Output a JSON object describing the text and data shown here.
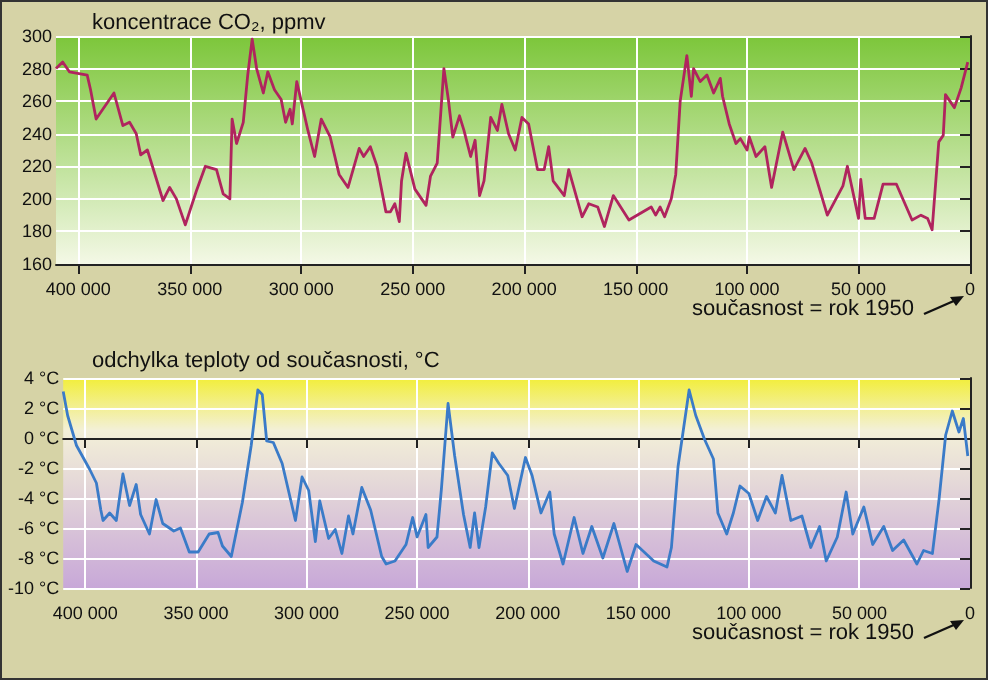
{
  "chart_data": [
    {
      "type": "line",
      "title": "koncentrace CO₂, ppmv",
      "annotations": [
        "současnost = rok 1950"
      ],
      "x": [
        410000,
        407000,
        404000,
        396000,
        394500,
        392000,
        384000,
        380000,
        377000,
        374000,
        372000,
        369000,
        362000,
        359000,
        356000,
        352000,
        347000,
        343000,
        338000,
        335000,
        332000,
        331000,
        329000,
        326000,
        324000,
        322000,
        320000,
        317000,
        315000,
        312000,
        309000,
        307000,
        305000,
        304000,
        302000,
        299000,
        297000,
        294000,
        291000,
        287000,
        283000,
        279000,
        274000,
        272000,
        269000,
        266000,
        262000,
        260000,
        258000,
        256000,
        255000,
        253000,
        249000,
        244000,
        242000,
        239000,
        236000,
        234000,
        232000,
        229000,
        227000,
        224000,
        222000,
        220000,
        218000,
        215000,
        212000,
        210000,
        207000,
        204000,
        201000,
        198000,
        194000,
        191000,
        189000,
        187000,
        182000,
        180000,
        174000,
        171000,
        167000,
        164000,
        160000,
        153000,
        143000,
        141000,
        139000,
        137000,
        134000,
        132000,
        130000,
        127000,
        125000,
        124000,
        121000,
        118000,
        115000,
        112000,
        111000,
        108000,
        105000,
        103000,
        100000,
        99000,
        96000,
        92000,
        89000,
        84000,
        79000,
        74000,
        71000,
        64000,
        57000,
        55000,
        50000,
        49000,
        47000,
        43000,
        39000,
        33000,
        26000,
        22000,
        19000,
        17000,
        14000,
        12000,
        11000,
        7000,
        4000,
        1000
      ],
      "series": [
        {
          "color": "#b0245e",
          "values": [
            280,
            284,
            278,
            276,
            267,
            249,
            265,
            245,
            247,
            240,
            227,
            230,
            199,
            207,
            200,
            184,
            205,
            220,
            218,
            203,
            200,
            249,
            234,
            247,
            276,
            298,
            280,
            265,
            278,
            267,
            261,
            247,
            255,
            246,
            272,
            254,
            242,
            226,
            249,
            238,
            215,
            207,
            231,
            226,
            232,
            220,
            192,
            192,
            197,
            186,
            211,
            228,
            206,
            196,
            214,
            222,
            280,
            261,
            238,
            251,
            242,
            226,
            236,
            202,
            211,
            250,
            242,
            258,
            240,
            230,
            250,
            246,
            218,
            218,
            232,
            211,
            202,
            218,
            189,
            197,
            195,
            183,
            202,
            187,
            195,
            190,
            195,
            189,
            200,
            215,
            260,
            288,
            263,
            280,
            272,
            276,
            265,
            274,
            263,
            246,
            234,
            237,
            230,
            238,
            226,
            232,
            207,
            241,
            218,
            231,
            222,
            190,
            208,
            220,
            188,
            212,
            188,
            188,
            209,
            209,
            187,
            190,
            188,
            181,
            235,
            239,
            264,
            256,
            268,
            284
          ]
        }
      ],
      "xlim": [
        410000,
        0
      ],
      "xticks": [
        {
          "value": 400000,
          "label": "400 000"
        },
        {
          "value": 350000,
          "label": "350 000"
        },
        {
          "value": 300000,
          "label": "300 000"
        },
        {
          "value": 250000,
          "label": "250 000"
        },
        {
          "value": 200000,
          "label": "200 000"
        },
        {
          "value": 150000,
          "label": "150 000"
        },
        {
          "value": 100000,
          "label": "100 000"
        },
        {
          "value": 50000,
          "label": "50 000"
        },
        0
      ],
      "ylim": [
        160,
        300
      ],
      "yticks": [
        160,
        180,
        200,
        220,
        240,
        260,
        280,
        300
      ],
      "grid": true
    },
    {
      "type": "line",
      "title": "odchylka teploty od současnosti, °C",
      "annotations": [
        "současnost = rok 1950"
      ],
      "x": [
        410000,
        408000,
        404000,
        398000,
        395000,
        393000,
        392000,
        389000,
        386000,
        383000,
        380000,
        377000,
        375000,
        371000,
        368000,
        365000,
        360000,
        357000,
        353000,
        349000,
        344000,
        340000,
        338000,
        334000,
        329000,
        325000,
        322000,
        320000,
        318000,
        315000,
        311000,
        305000,
        302000,
        299000,
        296000,
        294000,
        290000,
        287000,
        284000,
        281000,
        279000,
        275000,
        271000,
        266000,
        264000,
        260000,
        255000,
        252000,
        250000,
        246000,
        245000,
        241000,
        239000,
        236000,
        233000,
        229000,
        226000,
        224000,
        222000,
        219000,
        216000,
        213000,
        209000,
        206000,
        201000,
        198000,
        194000,
        190000,
        188000,
        184000,
        179000,
        175000,
        171000,
        166000,
        161000,
        155000,
        151000,
        143000,
        137000,
        135000,
        132000,
        127000,
        124000,
        120000,
        116000,
        114000,
        110000,
        107000,
        104000,
        100000,
        96000,
        92000,
        88000,
        85000,
        81000,
        76000,
        72000,
        68000,
        65000,
        60000,
        56000,
        53000,
        48000,
        44000,
        39000,
        35000,
        30000,
        24000,
        21000,
        17000,
        14000,
        11000,
        8000,
        5000,
        3000,
        1000
      ],
      "series": [
        {
          "color": "#3a7bc8",
          "values": [
            3.1,
            1.5,
            -0.5,
            -2.1,
            -3.0,
            -4.8,
            -5.5,
            -5.0,
            -5.5,
            -2.4,
            -4.5,
            -3.1,
            -5.1,
            -6.4,
            -4.1,
            -5.7,
            -6.2,
            -6.0,
            -7.6,
            -7.6,
            -6.4,
            -6.3,
            -7.2,
            -7.9,
            -4.3,
            -0.5,
            3.2,
            2.9,
            -0.2,
            -0.3,
            -1.7,
            -5.5,
            -2.6,
            -3.5,
            -6.9,
            -4.2,
            -6.7,
            -6.1,
            -7.7,
            -5.2,
            -6.4,
            -3.3,
            -4.8,
            -7.9,
            -8.4,
            -8.2,
            -7.1,
            -5.3,
            -6.6,
            -5.1,
            -7.3,
            -6.6,
            -3.4,
            2.3,
            -1.2,
            -5.1,
            -7.3,
            -5.0,
            -7.3,
            -4.6,
            -1.0,
            -1.7,
            -2.5,
            -4.7,
            -1.3,
            -2.5,
            -5.0,
            -3.6,
            -6.4,
            -8.4,
            -5.3,
            -7.7,
            -5.9,
            -8.0,
            -5.7,
            -8.9,
            -7.1,
            -8.2,
            -8.6,
            -7.3,
            -1.9,
            3.2,
            1.5,
            -0.1,
            -1.4,
            -5.0,
            -6.4,
            -5.0,
            -3.2,
            -3.7,
            -5.5,
            -3.9,
            -5.0,
            -2.5,
            -5.5,
            -5.2,
            -7.3,
            -5.9,
            -8.2,
            -6.6,
            -3.6,
            -6.4,
            -4.6,
            -7.1,
            -5.9,
            -7.5,
            -6.8,
            -8.4,
            -7.5,
            -7.7,
            -4.1,
            0.2,
            1.8,
            0.4,
            1.3,
            -1.2
          ]
        }
      ],
      "xlim": [
        410000,
        0
      ],
      "xticks": [
        {
          "value": 400000,
          "label": "400 000"
        },
        {
          "value": 350000,
          "label": "350 000"
        },
        {
          "value": 300000,
          "label": "300 000"
        },
        {
          "value": 250000,
          "label": "250 000"
        },
        {
          "value": 200000,
          "label": "200 000"
        },
        {
          "value": 150000,
          "label": "150 000"
        },
        {
          "value": 100000,
          "label": "100 000"
        },
        {
          "value": 50000,
          "label": "50 000"
        },
        0
      ],
      "ylim": [
        -10,
        4
      ],
      "yticks": [
        {
          "value": -10,
          "label": "-10 °C"
        },
        {
          "value": -8,
          "label": "-8 °C"
        },
        {
          "value": -6,
          "label": "-6 °C"
        },
        {
          "value": -4,
          "label": "-4 °C"
        },
        {
          "value": -2,
          "label": "-2 °C"
        },
        {
          "value": 0,
          "label": "0 °C"
        },
        {
          "value": 2,
          "label": "2 °C"
        },
        {
          "value": 4,
          "label": "4 °C"
        }
      ],
      "grid": true
    }
  ]
}
